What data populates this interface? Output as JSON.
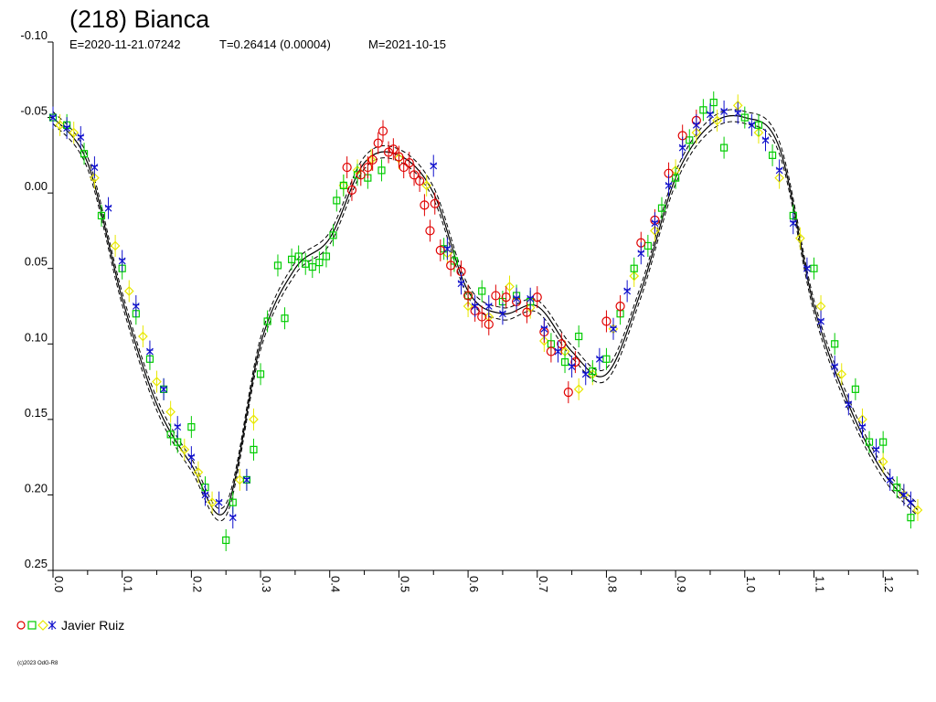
{
  "chart_data": {
    "type": "scatter",
    "title": "(218) Bianca",
    "subtitle_parts": [
      "E=2020-11-21.07242",
      "T=0.26414 (0.00004)",
      "M=2021-10-15"
    ],
    "copyright": "(c)2023 OdG-R8",
    "xlim": [
      0.0,
      1.25
    ],
    "ylim": [
      -0.1,
      0.25
    ],
    "y_inverted": true,
    "y_ticks": [
      -0.1,
      -0.05,
      0.0,
      0.05,
      0.1,
      0.15,
      0.2,
      0.25
    ],
    "y_tick_labels": [
      "-0.10",
      "-0.05",
      "0.00",
      "0.05",
      "0.10",
      "0.15",
      "0.20",
      "0.25"
    ],
    "x_ticks": [
      0.0,
      0.1,
      0.2,
      0.3,
      0.4,
      0.5,
      0.6,
      0.7,
      0.8,
      0.9,
      1.0,
      1.1,
      1.2
    ],
    "x_tick_labels": [
      "0.0",
      "0.1",
      "0.2",
      "0.3",
      "0.4",
      "0.5",
      "0.6",
      "0.7",
      "0.8",
      "0.9",
      "1.0",
      "1.1",
      "1.2"
    ],
    "fit_curve": {
      "x": [
        0.0,
        0.05,
        0.1,
        0.15,
        0.2,
        0.25,
        0.3,
        0.35,
        0.4,
        0.45,
        0.5,
        0.55,
        0.6,
        0.65,
        0.7,
        0.75,
        0.8,
        0.85,
        0.9,
        0.95,
        1.0,
        1.05,
        1.1,
        1.15,
        1.2,
        1.25
      ],
      "y": [
        -0.05,
        -0.02,
        0.07,
        0.14,
        0.18,
        0.21,
        0.1,
        0.05,
        0.03,
        -0.02,
        -0.025,
        0.0,
        0.065,
        0.08,
        0.075,
        0.105,
        0.12,
        0.065,
        -0.01,
        -0.045,
        -0.05,
        -0.03,
        0.075,
        0.14,
        0.185,
        0.21
      ]
    },
    "series": [
      {
        "name": "Javier Ruiz",
        "marker": "circle",
        "color": "#e00000",
        "points": [
          [
            0.425,
            -0.017
          ],
          [
            0.432,
            -0.002
          ],
          [
            0.445,
            -0.012
          ],
          [
            0.455,
            -0.017
          ],
          [
            0.462,
            -0.022
          ],
          [
            0.47,
            -0.033
          ],
          [
            0.477,
            -0.041
          ],
          [
            0.485,
            -0.027
          ],
          [
            0.492,
            -0.029
          ],
          [
            0.5,
            -0.024
          ],
          [
            0.507,
            -0.017
          ],
          [
            0.515,
            -0.02
          ],
          [
            0.522,
            -0.012
          ],
          [
            0.53,
            -0.008
          ],
          [
            0.537,
            0.008
          ],
          [
            0.545,
            0.025
          ],
          [
            0.552,
            0.007
          ],
          [
            0.56,
            0.038
          ],
          [
            0.575,
            0.048
          ],
          [
            0.59,
            0.052
          ],
          [
            0.6,
            0.068
          ],
          [
            0.61,
            0.078
          ],
          [
            0.62,
            0.082
          ],
          [
            0.63,
            0.087
          ],
          [
            0.64,
            0.068
          ],
          [
            0.655,
            0.069
          ],
          [
            0.67,
            0.072
          ],
          [
            0.685,
            0.079
          ],
          [
            0.7,
            0.069
          ],
          [
            0.71,
            0.092
          ],
          [
            0.72,
            0.105
          ],
          [
            0.735,
            0.1
          ],
          [
            0.745,
            0.132
          ],
          [
            0.755,
            0.112
          ],
          [
            0.8,
            0.085
          ],
          [
            0.82,
            0.075
          ],
          [
            0.85,
            0.033
          ],
          [
            0.87,
            0.018
          ],
          [
            0.89,
            -0.013
          ],
          [
            0.91,
            -0.038
          ],
          [
            0.93,
            -0.048
          ]
        ]
      },
      {
        "name": "Javier Ruiz",
        "marker": "square",
        "color": "#00cc00",
        "points": [
          [
            0.0,
            -0.05
          ],
          [
            0.02,
            -0.045
          ],
          [
            0.045,
            -0.026
          ],
          [
            0.07,
            0.015
          ],
          [
            0.1,
            0.05
          ],
          [
            0.12,
            0.08
          ],
          [
            0.14,
            0.11
          ],
          [
            0.16,
            0.13
          ],
          [
            0.17,
            0.16
          ],
          [
            0.18,
            0.165
          ],
          [
            0.2,
            0.155
          ],
          [
            0.22,
            0.195
          ],
          [
            0.25,
            0.23
          ],
          [
            0.26,
            0.205
          ],
          [
            0.28,
            0.19
          ],
          [
            0.29,
            0.17
          ],
          [
            0.3,
            0.12
          ],
          [
            0.31,
            0.085
          ],
          [
            0.325,
            0.048
          ],
          [
            0.335,
            0.083
          ],
          [
            0.345,
            0.044
          ],
          [
            0.355,
            0.042
          ],
          [
            0.365,
            0.047
          ],
          [
            0.375,
            0.049
          ],
          [
            0.385,
            0.046
          ],
          [
            0.395,
            0.042
          ],
          [
            0.405,
            0.028
          ],
          [
            0.41,
            0.005
          ],
          [
            0.42,
            -0.005
          ],
          [
            0.44,
            -0.012
          ],
          [
            0.455,
            -0.01
          ],
          [
            0.475,
            -0.015
          ],
          [
            0.565,
            0.037
          ],
          [
            0.58,
            0.045
          ],
          [
            0.6,
            0.068
          ],
          [
            0.62,
            0.065
          ],
          [
            0.65,
            0.072
          ],
          [
            0.67,
            0.068
          ],
          [
            0.69,
            0.072
          ],
          [
            0.72,
            0.1
          ],
          [
            0.74,
            0.112
          ],
          [
            0.76,
            0.095
          ],
          [
            0.78,
            0.118
          ],
          [
            0.8,
            0.11
          ],
          [
            0.82,
            0.08
          ],
          [
            0.84,
            0.05
          ],
          [
            0.86,
            0.035
          ],
          [
            0.88,
            0.01
          ],
          [
            0.9,
            -0.01
          ],
          [
            0.92,
            -0.035
          ],
          [
            0.94,
            -0.055
          ],
          [
            0.955,
            -0.06
          ],
          [
            0.97,
            -0.03
          ],
          [
            1.0,
            -0.05
          ],
          [
            1.02,
            -0.045
          ],
          [
            1.04,
            -0.025
          ],
          [
            1.07,
            0.015
          ],
          [
            1.1,
            0.05
          ],
          [
            1.13,
            0.1
          ],
          [
            1.16,
            0.13
          ],
          [
            1.18,
            0.165
          ],
          [
            1.2,
            0.165
          ],
          [
            1.22,
            0.195
          ],
          [
            1.24,
            0.215
          ]
        ]
      },
      {
        "name": "Javier Ruiz",
        "marker": "diamond",
        "color": "#e8e800",
        "points": [
          [
            0.01,
            -0.045
          ],
          [
            0.03,
            -0.04
          ],
          [
            0.06,
            -0.01
          ],
          [
            0.09,
            0.035
          ],
          [
            0.11,
            0.065
          ],
          [
            0.13,
            0.095
          ],
          [
            0.15,
            0.125
          ],
          [
            0.17,
            0.145
          ],
          [
            0.19,
            0.17
          ],
          [
            0.21,
            0.185
          ],
          [
            0.23,
            0.205
          ],
          [
            0.27,
            0.19
          ],
          [
            0.29,
            0.15
          ],
          [
            0.42,
            -0.005
          ],
          [
            0.44,
            -0.015
          ],
          [
            0.46,
            -0.022
          ],
          [
            0.5,
            -0.023
          ],
          [
            0.54,
            -0.005
          ],
          [
            0.57,
            0.04
          ],
          [
            0.6,
            0.075
          ],
          [
            0.63,
            0.082
          ],
          [
            0.66,
            0.062
          ],
          [
            0.69,
            0.076
          ],
          [
            0.71,
            0.098
          ],
          [
            0.74,
            0.105
          ],
          [
            0.76,
            0.13
          ],
          [
            0.78,
            0.12
          ],
          [
            0.81,
            0.09
          ],
          [
            0.84,
            0.055
          ],
          [
            0.87,
            0.025
          ],
          [
            0.9,
            -0.015
          ],
          [
            0.93,
            -0.04
          ],
          [
            0.96,
            -0.048
          ],
          [
            0.99,
            -0.058
          ],
          [
            1.02,
            -0.04
          ],
          [
            1.05,
            -0.01
          ],
          [
            1.08,
            0.03
          ],
          [
            1.11,
            0.075
          ],
          [
            1.14,
            0.12
          ],
          [
            1.17,
            0.15
          ],
          [
            1.2,
            0.178
          ],
          [
            1.23,
            0.2
          ],
          [
            1.25,
            0.21
          ]
        ]
      },
      {
        "name": "Javier Ruiz",
        "marker": "star",
        "color": "#1010cc",
        "points": [
          [
            0.0,
            -0.05
          ],
          [
            0.02,
            -0.043
          ],
          [
            0.04,
            -0.037
          ],
          [
            0.06,
            -0.017
          ],
          [
            0.08,
            0.01
          ],
          [
            0.1,
            0.045
          ],
          [
            0.12,
            0.075
          ],
          [
            0.14,
            0.105
          ],
          [
            0.16,
            0.13
          ],
          [
            0.18,
            0.155
          ],
          [
            0.2,
            0.175
          ],
          [
            0.22,
            0.2
          ],
          [
            0.24,
            0.205
          ],
          [
            0.26,
            0.215
          ],
          [
            0.28,
            0.19
          ],
          [
            0.55,
            -0.018
          ],
          [
            0.57,
            0.037
          ],
          [
            0.59,
            0.06
          ],
          [
            0.61,
            0.075
          ],
          [
            0.63,
            0.075
          ],
          [
            0.65,
            0.08
          ],
          [
            0.67,
            0.07
          ],
          [
            0.69,
            0.07
          ],
          [
            0.71,
            0.09
          ],
          [
            0.73,
            0.105
          ],
          [
            0.75,
            0.115
          ],
          [
            0.77,
            0.12
          ],
          [
            0.79,
            0.11
          ],
          [
            0.81,
            0.09
          ],
          [
            0.83,
            0.065
          ],
          [
            0.85,
            0.04
          ],
          [
            0.87,
            0.02
          ],
          [
            0.89,
            -0.005
          ],
          [
            0.91,
            -0.03
          ],
          [
            0.93,
            -0.045
          ],
          [
            0.95,
            -0.052
          ],
          [
            0.97,
            -0.054
          ],
          [
            0.99,
            -0.053
          ],
          [
            1.01,
            -0.045
          ],
          [
            1.03,
            -0.035
          ],
          [
            1.05,
            -0.015
          ],
          [
            1.07,
            0.02
          ],
          [
            1.09,
            0.05
          ],
          [
            1.11,
            0.085
          ],
          [
            1.13,
            0.115
          ],
          [
            1.15,
            0.14
          ],
          [
            1.17,
            0.155
          ],
          [
            1.19,
            0.17
          ],
          [
            1.21,
            0.19
          ],
          [
            1.23,
            0.2
          ],
          [
            1.24,
            0.205
          ]
        ]
      }
    ],
    "legend_label": "Javier Ruiz",
    "legend_position": "bottom-left"
  }
}
